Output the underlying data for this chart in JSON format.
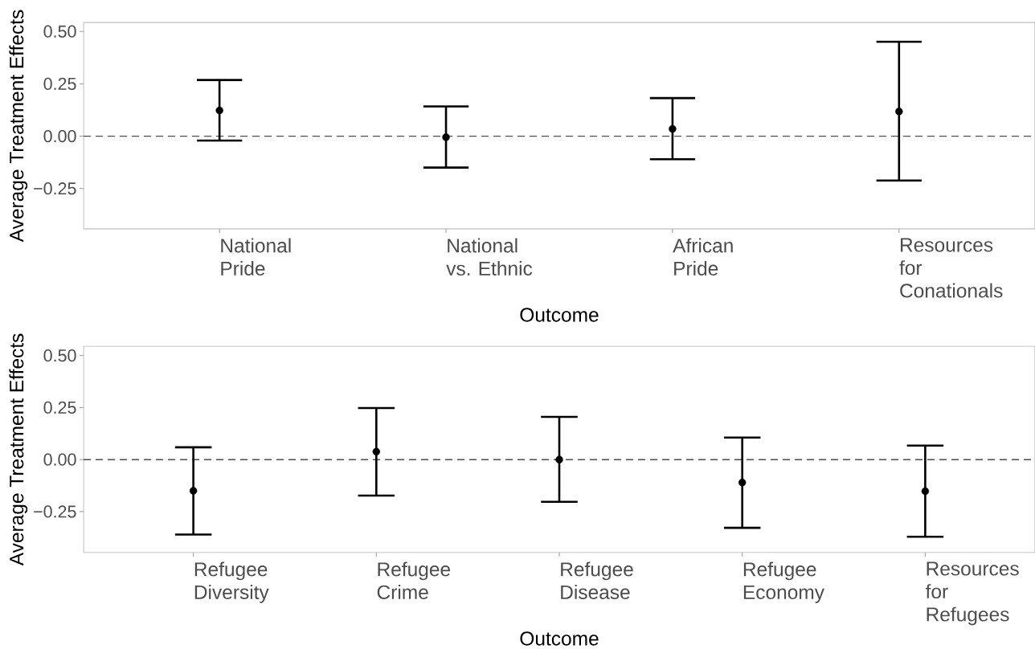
{
  "chart_data": [
    {
      "type": "scatter",
      "xlabel": "Outcome",
      "ylabel": "Average Treatment Effects",
      "categories": [
        "National Pride",
        "National vs. Ethnic",
        "African Pride",
        "Resources for Conationals"
      ],
      "values": [
        0.123,
        -0.005,
        0.035,
        0.118
      ],
      "errors": [
        [
          -0.021,
          0.268
        ],
        [
          -0.15,
          0.142
        ],
        [
          -0.11,
          0.182
        ],
        [
          -0.212,
          0.451
        ]
      ],
      "color": "#000000",
      "marker": "circle",
      "ylim": [
        -0.443,
        0.543
      ],
      "yticks": [
        {
          "value": -0.25,
          "label": "−0.25"
        },
        {
          "value": 0,
          "label": "0.00"
        },
        {
          "value": 0.25,
          "label": "0.25"
        },
        {
          "value": 0.5,
          "label": "0.50"
        }
      ],
      "ref_lines": [
        {
          "axis": "y",
          "value": 0,
          "color": "#4d4d4d",
          "line_style": "dashed"
        }
      ]
    },
    {
      "type": "scatter",
      "xlabel": "Outcome",
      "ylabel": "Average Treatment Effects",
      "categories": [
        "Refugee Diversity",
        "Refugee Crime",
        "Refugee Disease",
        "Refugee Economy",
        "Resources for Refugees"
      ],
      "values": [
        -0.15,
        0.038,
        0.0,
        -0.11,
        -0.152
      ],
      "errors": [
        [
          -0.36,
          0.059
        ],
        [
          -0.173,
          0.248
        ],
        [
          -0.203,
          0.205
        ],
        [
          -0.328,
          0.106
        ],
        [
          -0.371,
          0.067
        ]
      ],
      "color": "#000000",
      "marker": "circle",
      "ylim": [
        -0.447,
        0.545
      ],
      "yticks": [
        {
          "value": -0.25,
          "label": "−0.25"
        },
        {
          "value": 0,
          "label": "0.00"
        },
        {
          "value": 0.25,
          "label": "0.25"
        },
        {
          "value": 0.5,
          "label": "0.50"
        }
      ],
      "ref_lines": [
        {
          "axis": "y",
          "value": 0,
          "color": "#4d4d4d",
          "line_style": "dashed"
        }
      ]
    }
  ]
}
